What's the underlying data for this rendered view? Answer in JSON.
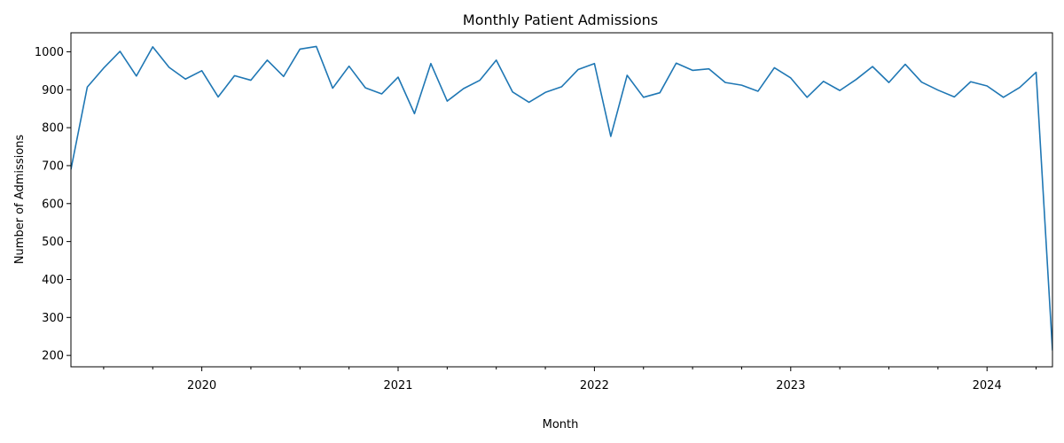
{
  "chart_data": {
    "type": "line",
    "title": "Monthly Patient Admissions",
    "xlabel": "Month",
    "ylabel": "Number of Admissions",
    "ylim": [
      170,
      1050
    ],
    "xlim": [
      "2019-05",
      "2024-05"
    ],
    "grid": false,
    "legend": "none",
    "line_color": "#1f77b4",
    "yticks": [
      200,
      300,
      400,
      500,
      600,
      700,
      800,
      900,
      1000
    ],
    "xticks_major": [
      {
        "x": "2020-01",
        "label": "2020"
      },
      {
        "x": "2021-01",
        "label": "2021"
      },
      {
        "x": "2022-01",
        "label": "2022"
      },
      {
        "x": "2023-01",
        "label": "2023"
      },
      {
        "x": "2024-01",
        "label": "2024"
      }
    ],
    "x": [
      "2019-05",
      "2019-06",
      "2019-07",
      "2019-08",
      "2019-09",
      "2019-10",
      "2019-11",
      "2019-12",
      "2020-01",
      "2020-02",
      "2020-03",
      "2020-04",
      "2020-05",
      "2020-06",
      "2020-07",
      "2020-08",
      "2020-09",
      "2020-10",
      "2020-11",
      "2020-12",
      "2021-01",
      "2021-02",
      "2021-03",
      "2021-04",
      "2021-05",
      "2021-06",
      "2021-07",
      "2021-08",
      "2021-09",
      "2021-10",
      "2021-11",
      "2021-12",
      "2022-01",
      "2022-02",
      "2022-03",
      "2022-04",
      "2022-05",
      "2022-06",
      "2022-07",
      "2022-08",
      "2022-09",
      "2022-10",
      "2022-11",
      "2022-12",
      "2023-01",
      "2023-02",
      "2023-03",
      "2023-04",
      "2023-05",
      "2023-06",
      "2023-07",
      "2023-08",
      "2023-09",
      "2023-10",
      "2023-11",
      "2023-12",
      "2024-01",
      "2024-02",
      "2024-03",
      "2024-04",
      "2024-05"
    ],
    "series": [
      {
        "values": [
          690,
          907,
          957,
          1001,
          936,
          1013,
          959,
          928,
          950,
          881,
          937,
          925,
          978,
          935,
          1007,
          1014,
          904,
          962,
          905,
          889,
          933,
          837,
          969,
          870,
          903,
          925,
          978,
          894,
          867,
          893,
          908,
          953,
          969,
          777,
          938,
          880,
          892,
          970,
          951,
          955,
          919,
          912,
          896,
          958,
          931,
          880,
          922,
          898,
          927,
          961,
          919,
          967,
          920,
          899,
          881,
          921,
          910,
          880,
          906,
          946,
          213
        ]
      }
    ]
  }
}
